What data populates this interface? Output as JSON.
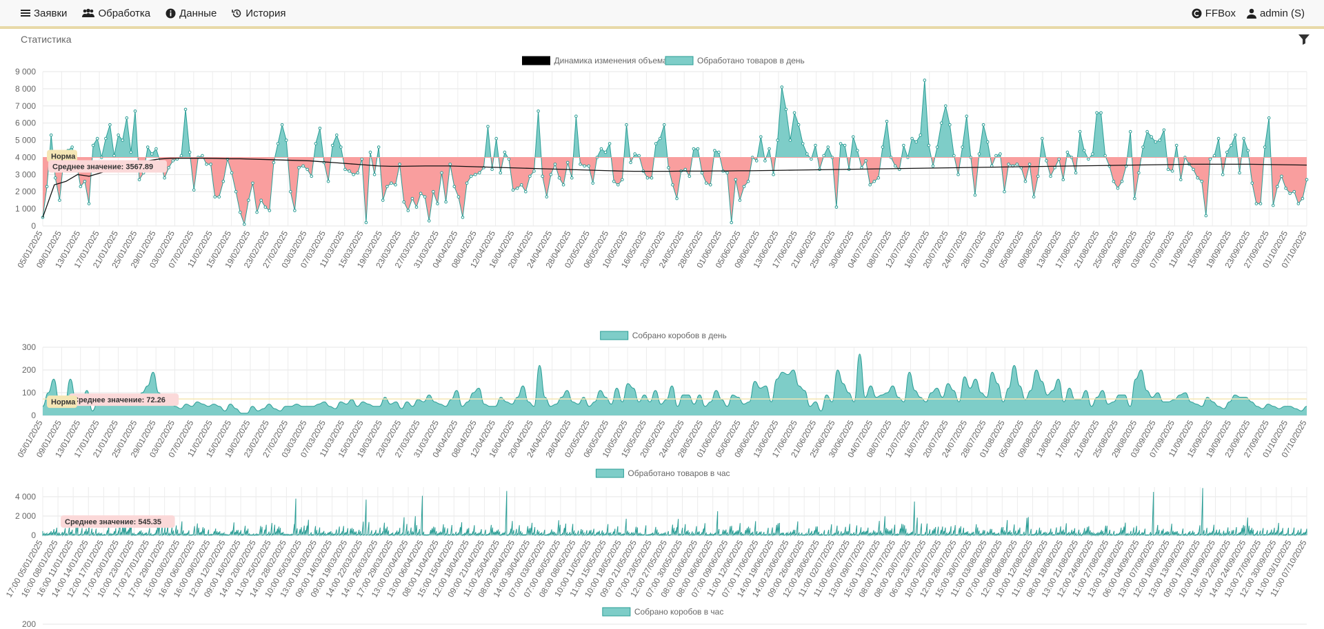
{
  "nav": {
    "left": [
      {
        "icon": "menu-icon",
        "label": "Заявки"
      },
      {
        "icon": "group-icon",
        "label": "Обработка"
      },
      {
        "icon": "info-icon",
        "label": "Данные"
      },
      {
        "icon": "history-icon",
        "label": "История"
      }
    ],
    "right": [
      {
        "icon": "ffbox-icon",
        "label": "FFBox"
      },
      {
        "icon": "user-icon",
        "label": "admin (S)"
      }
    ]
  },
  "page": {
    "title": "Статистика",
    "filter_icon": "filter-icon"
  },
  "colors": {
    "teal": "#7ecdc8",
    "teal_stroke": "#2a9d95",
    "red": "#f99e9e",
    "norm_bg": "#f5e6b5",
    "avg_bg": "#fbd9d9",
    "line": "#000000"
  },
  "chart_data": [
    {
      "type": "area",
      "title": "",
      "legend": [
        "Динамика изменения объема",
        "Обработано товаров в день"
      ],
      "legend_position": "top-center",
      "ylim": [
        0,
        9000
      ],
      "yticks": [
        "0",
        "1 000",
        "2 000",
        "3 000",
        "4 000",
        "5 000",
        "6 000",
        "7 000",
        "8 000",
        "9 000"
      ],
      "baseline": 4000,
      "annotations": {
        "norm": "Норма",
        "average": "Среднее значение: 3567.89"
      },
      "xticks": [
        "05/01/2025",
        "09/01/2025",
        "13/01/2025",
        "17/01/2025",
        "21/01/2025",
        "25/01/2025",
        "29/01/2025",
        "03/02/2025",
        "07/02/2025",
        "11/02/2025",
        "15/02/2025",
        "19/02/2025",
        "23/02/2025",
        "27/02/2025",
        "03/03/2025",
        "07/03/2025",
        "11/03/2025",
        "15/03/2025",
        "19/03/2025",
        "23/03/2025",
        "27/03/2025",
        "31/03/2025",
        "04/04/2025",
        "08/04/2025",
        "12/04/2025",
        "16/04/2025",
        "20/04/2025",
        "24/04/2025",
        "28/04/2025",
        "02/05/2025",
        "06/05/2025",
        "10/05/2025",
        "16/05/2025",
        "20/05/2025",
        "24/05/2025",
        "28/05/2025",
        "01/06/2025",
        "05/06/2025",
        "09/06/2025",
        "13/06/2025",
        "17/06/2025",
        "21/06/2025",
        "25/06/2025",
        "30/06/2025",
        "04/07/2025",
        "08/07/2025",
        "12/07/2025",
        "16/07/2025",
        "20/07/2025",
        "24/07/2025",
        "28/07/2025",
        "01/08/2025",
        "05/08/2025",
        "09/08/2025",
        "13/08/2025",
        "17/08/2025",
        "21/08/2025",
        "25/08/2025",
        "29/08/2025",
        "03/09/2025",
        "07/09/2025",
        "11/09/2025",
        "15/09/2025",
        "19/09/2025",
        "23/09/2025",
        "27/09/2025",
        "01/10/2025",
        "07/10/2025"
      ],
      "series": [
        {
          "name": "Обработано товаров в день",
          "values": [
            500,
            2300,
            5300,
            2800,
            1500,
            3900,
            4400,
            4600,
            3700,
            2300,
            2600,
            1300,
            4700,
            5100,
            4000,
            5100,
            5900,
            4100,
            5300,
            5000,
            6300,
            4300,
            6700,
            2700,
            3100,
            4600,
            4200,
            4500,
            3700,
            2800,
            3400,
            3800,
            3900,
            4100,
            6800,
            4300,
            2100,
            4000,
            4100,
            3600,
            3600,
            1700,
            1700,
            2600,
            3900,
            3100,
            2000,
            800,
            100,
            1500,
            2500,
            800,
            1500,
            1100,
            900,
            3700,
            4800,
            5900,
            5000,
            2000,
            900,
            3400,
            3500,
            3300,
            2900,
            4800,
            5700,
            3700,
            2600,
            4700,
            5300,
            4600,
            3300,
            3200,
            3000,
            3100,
            3900,
            200,
            4300,
            3000,
            4600,
            1500,
            2300,
            2500,
            2400,
            3600,
            1400,
            900,
            1600,
            1100,
            1900,
            1700,
            300,
            2000,
            1300,
            3100,
            1400,
            3600,
            2300,
            1700,
            500,
            2500,
            2900,
            3000,
            3100,
            3400,
            5800,
            3300,
            5100,
            3100,
            4300,
            3900,
            2100,
            2200,
            2400,
            2000,
            2900,
            3200,
            6700,
            2900,
            1700,
            3000,
            3600,
            2800,
            2400,
            3700,
            2800,
            6400,
            3600,
            3500,
            3500,
            2500,
            4000,
            4500,
            4300,
            4800,
            2600,
            2400,
            2700,
            5900,
            3700,
            4200,
            4100,
            3200,
            2800,
            2800,
            4800,
            5100,
            5900,
            3400,
            2400,
            1600,
            3200,
            3300,
            2900,
            4500,
            4500,
            3100,
            2500,
            2400,
            4400,
            4300,
            3200,
            3100,
            200,
            2700,
            1500,
            2300,
            2600,
            4000,
            3800,
            5200,
            3800,
            4500,
            3000,
            5000,
            8100,
            6800,
            5000,
            6600,
            5900,
            4800,
            4200,
            3900,
            4700,
            3300,
            4100,
            4600,
            4000,
            1100,
            4800,
            4700,
            3300,
            5200,
            4400,
            3400,
            3800,
            2400,
            2600,
            2800,
            4600,
            6100,
            4000,
            3500,
            3300,
            4700,
            4000,
            5100,
            4900,
            5300,
            8500,
            4700,
            3500,
            4600,
            6000,
            7000,
            5900,
            4100,
            3000,
            4600,
            6400,
            4000,
            1800,
            4200,
            5900,
            4900,
            3500,
            4100,
            4200,
            2000,
            3600,
            3500,
            3600,
            3400,
            2600,
            3600,
            1700,
            2900,
            5100,
            3800,
            2900,
            3400,
            3900,
            2700,
            4300,
            4000,
            3100,
            5500,
            4400,
            3900,
            4200,
            6600,
            6600,
            4100,
            3500,
            2600,
            2200,
            2600,
            3500,
            5500,
            1600,
            3100,
            4600,
            5500,
            5200,
            4900,
            5000,
            5600,
            3300,
            3200,
            4700,
            2700,
            4000,
            3600,
            3300,
            2800,
            2600,
            600,
            3900,
            4100,
            5100,
            3000,
            4300,
            4700,
            5300,
            3100,
            5100,
            4400,
            2500,
            1300,
            1300,
            4600,
            6300,
            1200,
            2300,
            2900,
            2200,
            1900,
            2000,
            1300,
            1600,
            2700
          ]
        },
        {
          "name": "Динамика изменения объема",
          "values": [
            500,
            2400,
            2600,
            3000,
            2900,
            3100,
            3300,
            3500,
            3700,
            3800,
            3900,
            3950,
            3950,
            3950,
            3950,
            3940,
            3920,
            3920,
            3900,
            3880,
            3860,
            3840,
            3820,
            3800,
            3750,
            3700,
            3650,
            3600,
            3550,
            3500,
            3480,
            3480,
            3490,
            3500,
            3500,
            3500,
            3480,
            3460,
            3440,
            3420,
            3400,
            3380,
            3360,
            3340,
            3320,
            3300,
            3280,
            3260,
            3240,
            3220,
            3200,
            3190,
            3190,
            3190,
            3190,
            3200,
            3200,
            3200,
            3210,
            3210,
            3220,
            3220,
            3230,
            3240,
            3250,
            3260,
            3270,
            3280,
            3290,
            3300,
            3310,
            3320,
            3330,
            3340,
            3350,
            3360,
            3370,
            3380,
            3390,
            3400,
            3410,
            3420,
            3430,
            3440,
            3450,
            3460,
            3470,
            3480,
            3490,
            3500,
            3510,
            3520,
            3530,
            3540,
            3550,
            3560,
            3570,
            3580,
            3590,
            3600,
            3600,
            3600,
            3600,
            3600,
            3600,
            3590,
            3580,
            3570,
            3560,
            3550
          ]
        }
      ]
    },
    {
      "type": "area",
      "legend": [
        "Собрано коробов в день"
      ],
      "legend_position": "top-center",
      "ylim": [
        0,
        300
      ],
      "yticks": [
        "0",
        "100",
        "200",
        "300"
      ],
      "annotations": {
        "norm": "Норма",
        "average": "Среднее значение: 72.26"
      },
      "xticks": [
        "05/01/2025",
        "09/01/2025",
        "13/01/2025",
        "17/01/2025",
        "21/01/2025",
        "25/01/2025",
        "29/01/2025",
        "03/02/2025",
        "07/02/2025",
        "11/02/2025",
        "15/02/2025",
        "19/02/2025",
        "23/02/2025",
        "27/02/2025",
        "03/03/2025",
        "07/03/2025",
        "11/03/2025",
        "15/03/2025",
        "19/03/2025",
        "23/03/2025",
        "27/03/2025",
        "31/03/2025",
        "04/04/2025",
        "08/04/2025",
        "12/04/2025",
        "16/04/2025",
        "20/04/2025",
        "24/04/2025",
        "28/04/2025",
        "02/05/2025",
        "06/05/2025",
        "10/05/2025",
        "15/05/2025",
        "20/05/2025",
        "24/05/2025",
        "28/05/2025",
        "01/06/2025",
        "05/06/2025",
        "09/06/2025",
        "13/06/2025",
        "17/06/2025",
        "21/06/2025",
        "25/06/2025",
        "30/06/2025",
        "04/07/2025",
        "08/07/2025",
        "12/07/2025",
        "16/07/2025",
        "20/07/2025",
        "24/07/2025",
        "28/07/2025",
        "01/08/2025",
        "05/08/2025",
        "09/08/2025",
        "13/08/2025",
        "17/08/2025",
        "21/08/2025",
        "25/08/2025",
        "29/08/2025",
        "03/09/2025",
        "07/09/2025",
        "11/09/2025",
        "15/09/2025",
        "19/09/2025",
        "23/09/2025",
        "27/09/2025",
        "01/10/2025",
        "07/10/2025"
      ],
      "series": [
        {
          "name": "Собрано коробов в день",
          "values": [
            40,
            100,
            160,
            60,
            50,
            160,
            70,
            50,
            110,
            20,
            60,
            60,
            50,
            70,
            80,
            70,
            50,
            60,
            100,
            130,
            190,
            100,
            70,
            60,
            40,
            30,
            50,
            40,
            60,
            50,
            40,
            50,
            40,
            20,
            50,
            30,
            10,
            10,
            40,
            20,
            30,
            50,
            30,
            20,
            40,
            40,
            50,
            40,
            40,
            40,
            50,
            60,
            40,
            30,
            60,
            50,
            70,
            40,
            60,
            50,
            40,
            40,
            80,
            50,
            60,
            30,
            60,
            40,
            70,
            60,
            90,
            60,
            50,
            40,
            70,
            110,
            40,
            60,
            100,
            120,
            50,
            40,
            40,
            80,
            60,
            50,
            80,
            130,
            60,
            40,
            220,
            80,
            40,
            50,
            80,
            110,
            60,
            50,
            80,
            40,
            60,
            110,
            80,
            50,
            120,
            60,
            140,
            120,
            60,
            90,
            60,
            110,
            50,
            70,
            130,
            40,
            90,
            90,
            50,
            90,
            40,
            60,
            110,
            70,
            40,
            90,
            80,
            50,
            60,
            150,
            120,
            130,
            60,
            160,
            190,
            180,
            200,
            130,
            110,
            40,
            60,
            20,
            90,
            60,
            200,
            140,
            100,
            60,
            270,
            80,
            130,
            80,
            90,
            100,
            130,
            80,
            60,
            190,
            110,
            80,
            60,
            100,
            120,
            80,
            140,
            110,
            60,
            170,
            120,
            160,
            100,
            80,
            190,
            140,
            60,
            120,
            220,
            130,
            70,
            110,
            200,
            150,
            90,
            110,
            160,
            60,
            120,
            70,
            70,
            110,
            40,
            80,
            110,
            50,
            60,
            90,
            90,
            40,
            160,
            200,
            110,
            80,
            100,
            60,
            60,
            70,
            90,
            100,
            60,
            50,
            40,
            80,
            60,
            40,
            30,
            60,
            90,
            80,
            80,
            60,
            40,
            30,
            50,
            40,
            30,
            40,
            40,
            30,
            20,
            40
          ]
        }
      ]
    },
    {
      "type": "bar",
      "legend": [
        "Обработано товаров в час"
      ],
      "legend_position": "top-center",
      "ylim": [
        0,
        5000
      ],
      "yticks": [
        "0",
        "2 000",
        "4 000"
      ],
      "annotations": {
        "average": "Среднее значение: 545.35"
      },
      "xticks": [
        "17:00 05/01/2025",
        "16:00 08/01/2025",
        "16:00 11/01/2025",
        "14:00 14/01/2025",
        "12:00 17/01/2025",
        "17:00 20/01/2025",
        "10:00 23/01/2025",
        "17:00 27/01/2025",
        "17:00 29/01/2025",
        "15:00 03/02/2025",
        "16:00 06/02/2025",
        "16:00 09/02/2025",
        "12:00 12/02/2025",
        "09:00 16/02/2025",
        "14:00 20/02/2025",
        "11:00 25/02/2025",
        "14:00 28/02/2025",
        "10:00 05/03/2025",
        "13:00 10/03/2025",
        "09:00 14/03/2025",
        "09:00 19/03/2025",
        "14:00 22/03/2025",
        "14:00 26/03/2025",
        "17:00 29/03/2025",
        "13:00 02/04/2025",
        "13:00 06/04/2025",
        "08:00 11/04/2025",
        "15:00 15/04/2025",
        "12:00 18/04/2025",
        "09:00 21/04/2025",
        "11:00 25/04/2025",
        "08:00 28/04/2025",
        "14:00 30/04/2025",
        "07:00 03/05/2025",
        "07:00 06/05/2025",
        "08:00 08/05/2025",
        "10:00 11/05/2025",
        "11:00 15/05/2025",
        "10:00 18/05/2025",
        "09:00 21/05/2025",
        "07:00 23/05/2025",
        "12:00 27/05/2025",
        "07:00 30/05/2025",
        "08:00 03/06/2025",
        "08:00 06/06/2025",
        "07:00 09/06/2025",
        "11:00 12/06/2025",
        "07:00 17/06/2025",
        "14:00 19/06/2025",
        "14:00 23/06/2025",
        "09:00 26/06/2025",
        "12:00 28/06/2025",
        "11:00 02/07/2025",
        "11:00 05/07/2025",
        "13:00 09/07/2025",
        "15:00 13/07/2025",
        "08:00 17/07/2025",
        "08:00 20/07/2025",
        "06:00 23/07/2025",
        "10:00 25/07/2025",
        "12:00 28/07/2025",
        "15:00 30/07/2025",
        "11:00 03/08/2025",
        "07:00 06/08/2025",
        "12:00 08/08/2025",
        "10:00 12/08/2025",
        "11:00 15/08/2025",
        "08:00 18/08/2025",
        "13:00 21/08/2025",
        "12:00 24/08/2025",
        "11:00 27/08/2025",
        "13:00 31/08/2025",
        "06:00 04/09/2025",
        "13:00 07/09/2025",
        "12:00 10/09/2025",
        "13:00 13/09/2025",
        "09:00 17/09/2025",
        "10:00 19/09/2025",
        "15:00 22/09/2025",
        "14:00 24/09/2025",
        "13:00 27/09/2025",
        "12:00 30/09/2025",
        "11:00 03/10/2025",
        "11:00 07/10/2025"
      ],
      "series": [
        {
          "name": "Обработано товаров в час",
          "values": "~2900 hourly values, mostly 0–1500, peaks ≈4500–4900 near 08/04, 21/08 and 31/08/2025"
        }
      ]
    },
    {
      "type": "area",
      "legend": [
        "Собрано коробов в час"
      ],
      "legend_position": "top-center",
      "ylim": [
        0,
        200
      ],
      "yticks": [
        "200"
      ],
      "series": [
        {
          "name": "Собрано коробов в час",
          "values": []
        }
      ]
    }
  ]
}
